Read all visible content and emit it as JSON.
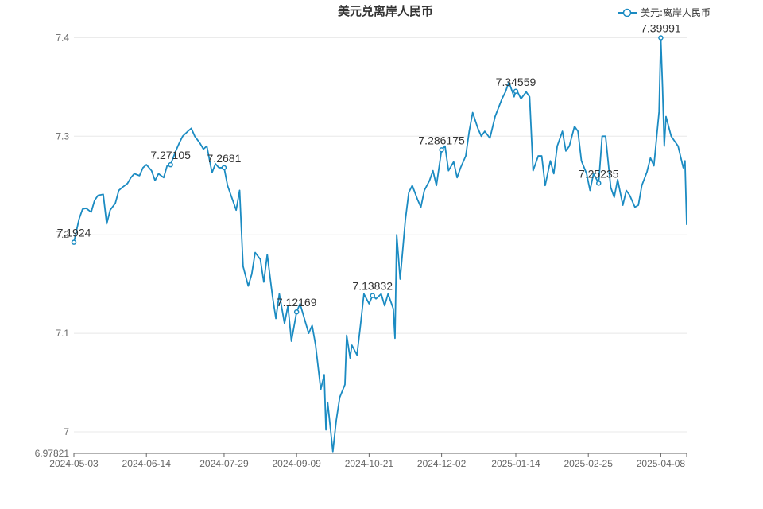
{
  "chart_data": {
    "type": "line",
    "title": "美元兑离岸人民币",
    "legend": {
      "position": "top-right",
      "entries": [
        "美元:离岸人民币"
      ]
    },
    "color": "#1b8bc2",
    "grid": true,
    "ylim": [
      6.97821,
      7.41
    ],
    "xlim": [
      "2024-05-03",
      "2025-04-23"
    ],
    "y_ticks": [
      6.97821,
      7,
      7.1,
      7.2,
      7.3,
      7.4
    ],
    "y_tick_labels": [
      "6.97821",
      "7",
      "7.1",
      "7.2",
      "7.3",
      "7.4"
    ],
    "x_ticks": [
      "2024-05-03",
      "2024-06-14",
      "2024-07-29",
      "2024-09-09",
      "2024-10-21",
      "2024-12-02",
      "2025-01-14",
      "2025-02-25",
      "2025-04-08"
    ],
    "series": [
      {
        "name": "美元:离岸人民币",
        "points": [
          [
            "2024-05-03",
            7.1924
          ],
          [
            "2024-05-06",
            7.216
          ],
          [
            "2024-05-08",
            7.226
          ],
          [
            "2024-05-10",
            7.227
          ],
          [
            "2024-05-13",
            7.223
          ],
          [
            "2024-05-15",
            7.235
          ],
          [
            "2024-05-17",
            7.24
          ],
          [
            "2024-05-20",
            7.241
          ],
          [
            "2024-05-22",
            7.211
          ],
          [
            "2024-05-24",
            7.225
          ],
          [
            "2024-05-27",
            7.232
          ],
          [
            "2024-05-29",
            7.245
          ],
          [
            "2024-05-31",
            7.248
          ],
          [
            "2024-06-03",
            7.252
          ],
          [
            "2024-06-05",
            7.258
          ],
          [
            "2024-06-07",
            7.262
          ],
          [
            "2024-06-10",
            7.26
          ],
          [
            "2024-06-12",
            7.268
          ],
          [
            "2024-06-14",
            7.2711
          ],
          [
            "2024-06-17",
            7.265
          ],
          [
            "2024-06-19",
            7.255
          ],
          [
            "2024-06-21",
            7.262
          ],
          [
            "2024-06-24",
            7.258
          ],
          [
            "2024-06-26",
            7.27
          ],
          [
            "2024-06-28",
            7.2711
          ],
          [
            "2024-07-01",
            7.285
          ],
          [
            "2024-07-03",
            7.293
          ],
          [
            "2024-07-05",
            7.3
          ],
          [
            "2024-07-08",
            7.305
          ],
          [
            "2024-07-10",
            7.308
          ],
          [
            "2024-07-12",
            7.3
          ],
          [
            "2024-07-15",
            7.293
          ],
          [
            "2024-07-17",
            7.287
          ],
          [
            "2024-07-19",
            7.29
          ],
          [
            "2024-07-22",
            7.263
          ],
          [
            "2024-07-24",
            7.272
          ],
          [
            "2024-07-26",
            7.268
          ],
          [
            "2024-07-29",
            7.2681
          ],
          [
            "2024-07-31",
            7.25
          ],
          [
            "2024-08-02",
            7.24
          ],
          [
            "2024-08-05",
            7.225
          ],
          [
            "2024-08-07",
            7.245
          ],
          [
            "2024-08-09",
            7.168
          ],
          [
            "2024-08-12",
            7.148
          ],
          [
            "2024-08-14",
            7.16
          ],
          [
            "2024-08-16",
            7.182
          ],
          [
            "2024-08-19",
            7.175
          ],
          [
            "2024-08-21",
            7.152
          ],
          [
            "2024-08-23",
            7.18
          ],
          [
            "2024-08-26",
            7.138
          ],
          [
            "2024-08-28",
            7.115
          ],
          [
            "2024-08-30",
            7.14
          ],
          [
            "2024-09-02",
            7.11
          ],
          [
            "2024-09-04",
            7.128
          ],
          [
            "2024-09-06",
            7.092
          ],
          [
            "2024-09-09",
            7.12169
          ],
          [
            "2024-09-11",
            7.13
          ],
          [
            "2024-09-13",
            7.118
          ],
          [
            "2024-09-16",
            7.1
          ],
          [
            "2024-09-18",
            7.108
          ],
          [
            "2024-09-20",
            7.088
          ],
          [
            "2024-09-23",
            7.043
          ],
          [
            "2024-09-25",
            7.058
          ],
          [
            "2024-09-26",
            7.002
          ],
          [
            "2024-09-27",
            7.03
          ],
          [
            "2024-09-30",
            6.98
          ],
          [
            "2024-10-02",
            7.012
          ],
          [
            "2024-10-04",
            7.035
          ],
          [
            "2024-10-07",
            7.048
          ],
          [
            "2024-10-08",
            7.098
          ],
          [
            "2024-10-10",
            7.075
          ],
          [
            "2024-10-11",
            7.088
          ],
          [
            "2024-10-14",
            7.078
          ],
          [
            "2024-10-16",
            7.108
          ],
          [
            "2024-10-18",
            7.14
          ],
          [
            "2024-10-21",
            7.13
          ],
          [
            "2024-10-23",
            7.13832
          ],
          [
            "2024-10-25",
            7.135
          ],
          [
            "2024-10-28",
            7.14
          ],
          [
            "2024-10-30",
            7.128
          ],
          [
            "2024-11-01",
            7.14
          ],
          [
            "2024-11-04",
            7.125
          ],
          [
            "2024-11-05",
            7.095
          ],
          [
            "2024-11-06",
            7.2
          ],
          [
            "2024-11-08",
            7.155
          ],
          [
            "2024-11-11",
            7.215
          ],
          [
            "2024-11-13",
            7.243
          ],
          [
            "2024-11-15",
            7.25
          ],
          [
            "2024-11-18",
            7.236
          ],
          [
            "2024-11-20",
            7.228
          ],
          [
            "2024-11-22",
            7.245
          ],
          [
            "2024-11-25",
            7.255
          ],
          [
            "2024-11-27",
            7.265
          ],
          [
            "2024-11-29",
            7.25
          ],
          [
            "2024-12-02",
            7.286175
          ],
          [
            "2024-12-04",
            7.29
          ],
          [
            "2024-12-06",
            7.265
          ],
          [
            "2024-12-09",
            7.274
          ],
          [
            "2024-12-11",
            7.258
          ],
          [
            "2024-12-13",
            7.268
          ],
          [
            "2024-12-16",
            7.28
          ],
          [
            "2024-12-18",
            7.305
          ],
          [
            "2024-12-20",
            7.324
          ],
          [
            "2024-12-23",
            7.308
          ],
          [
            "2024-12-25",
            7.3
          ],
          [
            "2024-12-27",
            7.305
          ],
          [
            "2024-12-30",
            7.298
          ],
          [
            "2025-01-02",
            7.32
          ],
          [
            "2025-01-06",
            7.338
          ],
          [
            "2025-01-08",
            7.345
          ],
          [
            "2025-01-10",
            7.355
          ],
          [
            "2025-01-13",
            7.34
          ],
          [
            "2025-01-14",
            7.34559
          ],
          [
            "2025-01-15",
            7.345
          ],
          [
            "2025-01-17",
            7.338
          ],
          [
            "2025-01-20",
            7.345
          ],
          [
            "2025-01-22",
            7.34
          ],
          [
            "2025-01-24",
            7.265
          ],
          [
            "2025-01-27",
            7.28
          ],
          [
            "2025-01-29",
            7.28
          ],
          [
            "2025-01-31",
            7.25
          ],
          [
            "2025-02-03",
            7.275
          ],
          [
            "2025-02-05",
            7.262
          ],
          [
            "2025-02-07",
            7.29
          ],
          [
            "2025-02-10",
            7.305
          ],
          [
            "2025-02-12",
            7.285
          ],
          [
            "2025-02-14",
            7.29
          ],
          [
            "2025-02-17",
            7.31
          ],
          [
            "2025-02-19",
            7.305
          ],
          [
            "2025-02-21",
            7.275
          ],
          [
            "2025-02-24",
            7.262
          ],
          [
            "2025-02-26",
            7.245
          ],
          [
            "2025-02-28",
            7.262
          ],
          [
            "2025-03-03",
            7.25235
          ],
          [
            "2025-03-05",
            7.3
          ],
          [
            "2025-03-07",
            7.3
          ],
          [
            "2025-03-10",
            7.248
          ],
          [
            "2025-03-12",
            7.238
          ],
          [
            "2025-03-14",
            7.256
          ],
          [
            "2025-03-17",
            7.23
          ],
          [
            "2025-03-19",
            7.245
          ],
          [
            "2025-03-21",
            7.24
          ],
          [
            "2025-03-24",
            7.228
          ],
          [
            "2025-03-26",
            7.23
          ],
          [
            "2025-03-28",
            7.25
          ],
          [
            "2025-03-31",
            7.264
          ],
          [
            "2025-04-02",
            7.278
          ],
          [
            "2025-04-04",
            7.27
          ],
          [
            "2025-04-07",
            7.325
          ],
          [
            "2025-04-08",
            7.39991
          ],
          [
            "2025-04-09",
            7.35
          ],
          [
            "2025-04-10",
            7.29
          ],
          [
            "2025-04-11",
            7.32
          ],
          [
            "2025-04-14",
            7.3
          ],
          [
            "2025-04-16",
            7.295
          ],
          [
            "2025-04-18",
            7.29
          ],
          [
            "2025-04-21",
            7.268
          ],
          [
            "2025-04-22",
            7.275
          ],
          [
            "2025-04-23",
            7.21
          ]
        ]
      }
    ],
    "annotations": [
      {
        "date": "2024-05-03",
        "value": 7.1924,
        "label": "7.1924"
      },
      {
        "date": "2024-06-28",
        "value": 7.27105,
        "label": "7.27105"
      },
      {
        "date": "2024-07-29",
        "value": 7.2681,
        "label": "7.2681"
      },
      {
        "date": "2024-09-09",
        "value": 7.12169,
        "label": "7.12169"
      },
      {
        "date": "2024-10-23",
        "value": 7.13832,
        "label": "7.13832"
      },
      {
        "date": "2024-12-02",
        "value": 7.286175,
        "label": "7.286175"
      },
      {
        "date": "2025-01-14",
        "value": 7.34559,
        "label": "7.34559"
      },
      {
        "date": "2025-03-03",
        "value": 7.25235,
        "label": "7.25235"
      },
      {
        "date": "2025-04-08",
        "value": 7.39991,
        "label": "7.39991"
      }
    ]
  }
}
